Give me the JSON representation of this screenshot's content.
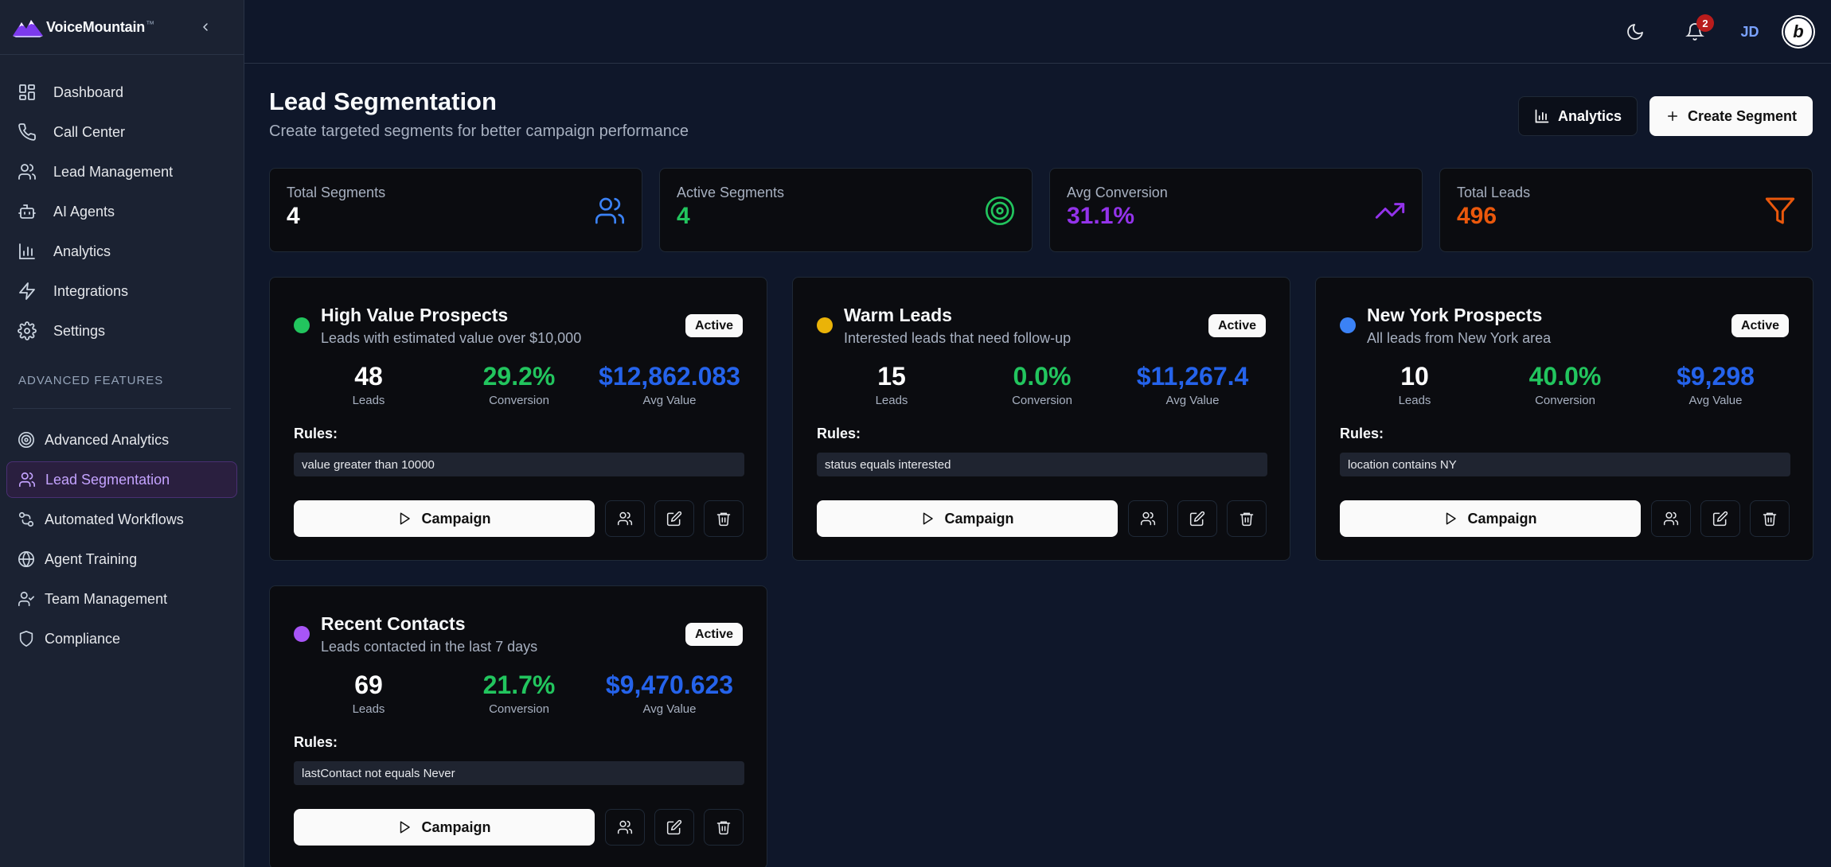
{
  "brand": {
    "name": "VoiceMountain",
    "mark": "™",
    "logo_icon": "mountain-logo-icon"
  },
  "sidebar": {
    "items": [
      {
        "label": "Dashboard",
        "icon": "dashboard-icon"
      },
      {
        "label": "Call Center",
        "icon": "phone-icon"
      },
      {
        "label": "Lead Management",
        "icon": "users-icon"
      },
      {
        "label": "AI Agents",
        "icon": "bot-icon"
      },
      {
        "label": "Analytics",
        "icon": "bar-chart-icon"
      },
      {
        "label": "Integrations",
        "icon": "zap-icon"
      },
      {
        "label": "Settings",
        "icon": "gear-icon"
      }
    ],
    "section_label": "ADVANCED FEATURES",
    "advanced": [
      {
        "label": "Advanced Analytics",
        "icon": "target-icon"
      },
      {
        "label": "Lead Segmentation",
        "icon": "users-icon",
        "active": true
      },
      {
        "label": "Automated Workflows",
        "icon": "workflow-icon"
      },
      {
        "label": "Agent Training",
        "icon": "brain-icon"
      },
      {
        "label": "Team Management",
        "icon": "user-check-icon"
      },
      {
        "label": "Compliance",
        "icon": "shield-icon"
      }
    ]
  },
  "topbar": {
    "notification_count": "2",
    "user_initials": "JD",
    "org_logo_letter": "b"
  },
  "header": {
    "title": "Lead Segmentation",
    "subtitle": "Create targeted segments for better campaign performance",
    "analytics_label": "Analytics",
    "create_label": "Create Segment"
  },
  "stats": [
    {
      "label": "Total Segments",
      "value": "4",
      "color": "#ffffff",
      "icon": "users-icon",
      "icon_color": "#3b82f6"
    },
    {
      "label": "Active Segments",
      "value": "4",
      "color": "#22c55e",
      "icon": "target-icon",
      "icon_color": "#22c55e"
    },
    {
      "label": "Avg Conversion",
      "value": "31.1%",
      "color": "#9333ea",
      "icon": "trending-up-icon",
      "icon_color": "#9333ea"
    },
    {
      "label": "Total Leads",
      "value": "496",
      "color": "#ea580c",
      "icon": "filter-icon",
      "icon_color": "#ea580c"
    }
  ],
  "segments": [
    {
      "name": "High Value Prospects",
      "description": "Leads with estimated value over $10,000",
      "status": "Active",
      "dot_color": "#22c55e",
      "leads": "48",
      "leads_label": "Leads",
      "conversion": "29.2%",
      "conversion_label": "Conversion",
      "avg_value": "$12,862.083",
      "avg_value_label": "Avg Value",
      "rules_label": "Rules:",
      "rule": "value greater than 10000",
      "campaign_label": "Campaign"
    },
    {
      "name": "Warm Leads",
      "description": "Interested leads that need follow-up",
      "status": "Active",
      "dot_color": "#eab308",
      "leads": "15",
      "leads_label": "Leads",
      "conversion": "0.0%",
      "conversion_label": "Conversion",
      "avg_value": "$11,267.4",
      "avg_value_label": "Avg Value",
      "rules_label": "Rules:",
      "rule": "status equals interested",
      "campaign_label": "Campaign"
    },
    {
      "name": "New York Prospects",
      "description": "All leads from New York area",
      "status": "Active",
      "dot_color": "#3b82f6",
      "leads": "10",
      "leads_label": "Leads",
      "conversion": "40.0%",
      "conversion_label": "Conversion",
      "avg_value": "$9,298",
      "avg_value_label": "Avg Value",
      "rules_label": "Rules:",
      "rule": "location contains NY",
      "campaign_label": "Campaign"
    },
    {
      "name": "Recent Contacts",
      "description": "Leads contacted in the last 7 days",
      "status": "Active",
      "dot_color": "#a855f7",
      "leads": "69",
      "leads_label": "Leads",
      "conversion": "21.7%",
      "conversion_label": "Conversion",
      "avg_value": "$9,470.623",
      "avg_value_label": "Avg Value",
      "rules_label": "Rules:",
      "rule": "lastContact not equals Never",
      "campaign_label": "Campaign"
    }
  ],
  "colors": {
    "conversion": "#22c55e",
    "avg_value": "#2563eb"
  }
}
